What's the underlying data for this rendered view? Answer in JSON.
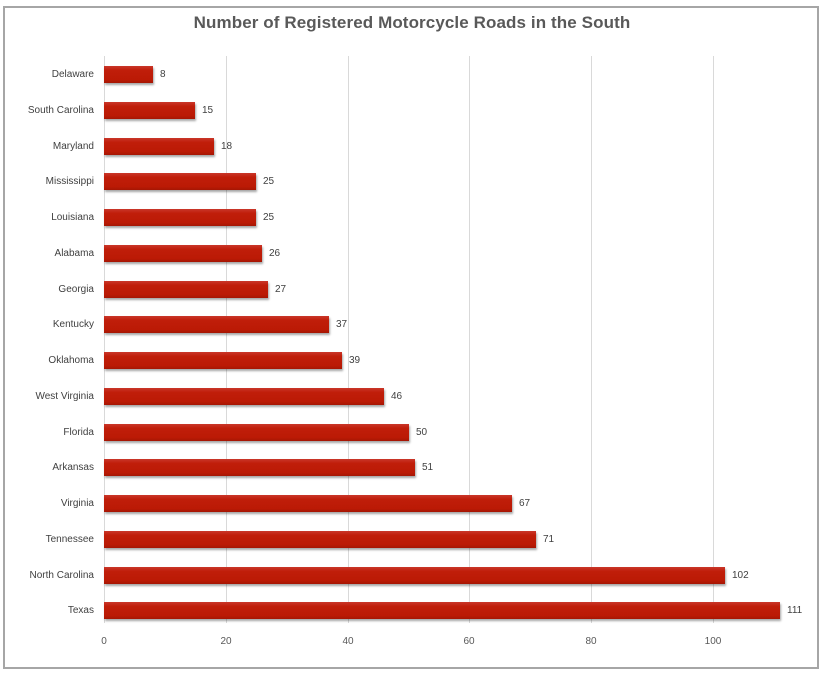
{
  "chart_data": {
    "type": "bar",
    "orientation": "horizontal",
    "title": "Number of Registered Motorcycle Roads in the South",
    "xlabel": "",
    "ylabel": "",
    "xlim": [
      0,
      115
    ],
    "x_ticks": [
      "0",
      "20",
      "40",
      "60",
      "80",
      "100"
    ],
    "grid": true,
    "legend": null,
    "data_labels": true,
    "bar_color": "#c01e0a",
    "categories": [
      "Delaware",
      "South Carolina",
      "Maryland",
      "Mississippi",
      "Louisiana",
      "Alabama",
      "Georgia",
      "Kentucky",
      "Oklahoma",
      "West Virginia",
      "Florida",
      "Arkansas",
      "Virginia",
      "Tennessee",
      "North Carolina",
      "Texas"
    ],
    "values": [
      8,
      15,
      18,
      25,
      25,
      26,
      27,
      37,
      39,
      46,
      50,
      51,
      67,
      71,
      102,
      111
    ]
  },
  "labels": {
    "title": "Number of Registered Motorcycle Roads in the South",
    "xticks": [
      "0",
      "20",
      "40",
      "60",
      "80",
      "100"
    ],
    "rows": [
      {
        "name": "Delaware",
        "value": "8"
      },
      {
        "name": "South Carolina",
        "value": "15"
      },
      {
        "name": "Maryland",
        "value": "18"
      },
      {
        "name": "Mississippi",
        "value": "25"
      },
      {
        "name": "Louisiana",
        "value": "25"
      },
      {
        "name": "Alabama",
        "value": "26"
      },
      {
        "name": "Georgia",
        "value": "27"
      },
      {
        "name": "Kentucky",
        "value": "37"
      },
      {
        "name": "Oklahoma",
        "value": "39"
      },
      {
        "name": "West Virginia",
        "value": "46"
      },
      {
        "name": "Florida",
        "value": "50"
      },
      {
        "name": "Arkansas",
        "value": "51"
      },
      {
        "name": "Virginia",
        "value": "67"
      },
      {
        "name": "Tennessee",
        "value": "71"
      },
      {
        "name": "North Carolina",
        "value": "102"
      },
      {
        "name": "Texas",
        "value": "111"
      }
    ]
  }
}
